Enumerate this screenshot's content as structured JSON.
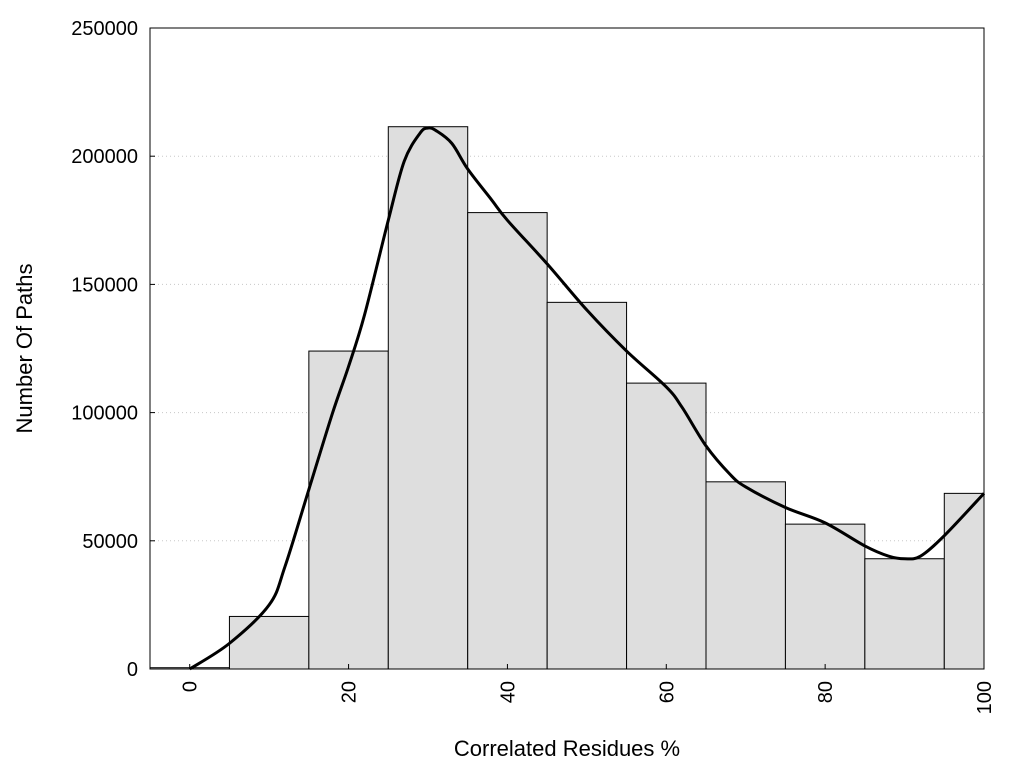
{
  "chart_data": {
    "type": "bar",
    "title": "",
    "xlabel": "Correlated Residues %",
    "ylabel": "Number Of Paths",
    "xlim": [
      -5,
      100
    ],
    "ylim": [
      0,
      250000
    ],
    "grid": true,
    "bar_color": "#dedede",
    "bar_edge_color": "#000000",
    "curve_color": "#000000",
    "x_ticks": [
      0,
      20,
      40,
      60,
      80,
      100
    ],
    "x_tick_labels": [
      "0",
      "20",
      "40",
      "60",
      "80",
      "100"
    ],
    "y_ticks": [
      0,
      50000,
      100000,
      150000,
      200000,
      250000
    ],
    "y_tick_labels": [
      "0",
      "50000",
      "100000",
      "150000",
      "200000",
      "250000"
    ],
    "bins": [
      {
        "x0": -5,
        "x1": 5,
        "value": 500
      },
      {
        "x0": 5,
        "x1": 15,
        "value": 20500
      },
      {
        "x0": 15,
        "x1": 25,
        "value": 124000
      },
      {
        "x0": 25,
        "x1": 35,
        "value": 211500
      },
      {
        "x0": 35,
        "x1": 45,
        "value": 178000
      },
      {
        "x0": 45,
        "x1": 55,
        "value": 143000
      },
      {
        "x0": 55,
        "x1": 65,
        "value": 111500
      },
      {
        "x0": 65,
        "x1": 75,
        "value": 73000
      },
      {
        "x0": 75,
        "x1": 85,
        "value": 56500
      },
      {
        "x0": 85,
        "x1": 95,
        "value": 43000
      },
      {
        "x0": 95,
        "x1": 100,
        "value": 68500
      }
    ],
    "curve": {
      "x": [
        0,
        5,
        10,
        12,
        15,
        18,
        20,
        22,
        25,
        27,
        29,
        30,
        31,
        33,
        35,
        38,
        40,
        45,
        50,
        55,
        60,
        62,
        65,
        68,
        70,
        75,
        80,
        85,
        88,
        90,
        92,
        95,
        100
      ],
      "y": [
        0,
        10000,
        25000,
        40000,
        70000,
        100000,
        118000,
        138000,
        175000,
        198000,
        209000,
        211000,
        210000,
        205000,
        195000,
        183000,
        175000,
        158000,
        140000,
        124000,
        110000,
        102000,
        87000,
        76000,
        71000,
        63000,
        57000,
        48000,
        44000,
        43000,
        44000,
        52000,
        68500
      ]
    }
  }
}
